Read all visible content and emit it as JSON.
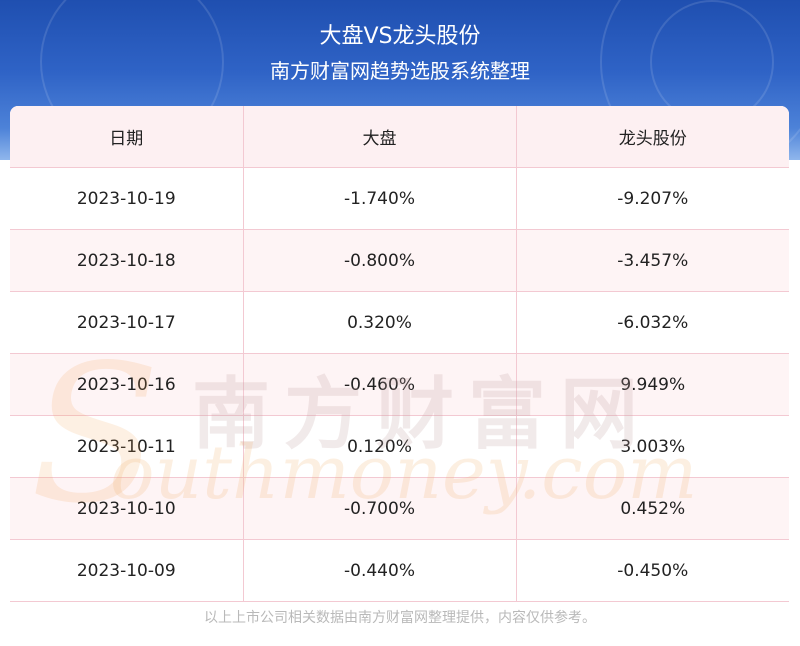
{
  "header": {
    "title": "大盘VS龙头股份",
    "subtitle": "南方财富网趋势选股系统整理"
  },
  "table": {
    "columns": [
      "日期",
      "大盘",
      "龙头股份"
    ],
    "rows": [
      [
        "2023-10-19",
        "-1.740%",
        "-9.207%"
      ],
      [
        "2023-10-18",
        "-0.800%",
        "-3.457%"
      ],
      [
        "2023-10-17",
        "0.320%",
        "-6.032%"
      ],
      [
        "2023-10-16",
        "-0.460%",
        "9.949%"
      ],
      [
        "2023-10-11",
        "0.120%",
        "3.003%"
      ],
      [
        "2023-10-10",
        "-0.700%",
        "0.452%"
      ],
      [
        "2023-10-09",
        "-0.440%",
        "-0.450%"
      ]
    ]
  },
  "watermark": {
    "text_cn": "南方财富网",
    "text_en": "outhmoney.com",
    "letter": "S"
  },
  "footer": {
    "note": "以上上市公司相关数据由南方财富网整理提供，内容仅供参考。"
  },
  "chart_data": {
    "type": "table",
    "title": "大盘VS龙头股份",
    "subtitle": "南方财富网趋势选股系统整理",
    "columns": [
      "日期",
      "大盘",
      "龙头股份"
    ],
    "categories": [
      "2023-10-19",
      "2023-10-18",
      "2023-10-17",
      "2023-10-16",
      "2023-10-11",
      "2023-10-10",
      "2023-10-09"
    ],
    "series": [
      {
        "name": "大盘",
        "values": [
          -1.74,
          -0.8,
          0.32,
          -0.46,
          0.12,
          -0.7,
          -0.44
        ]
      },
      {
        "name": "龙头股份",
        "values": [
          -9.207,
          -3.457,
          -6.032,
          9.949,
          3.003,
          0.452,
          -0.45
        ]
      }
    ]
  },
  "colors": {
    "banner": "#2f63c6",
    "header_row": "#fdf0f2",
    "grid_line": "#f3c9d2",
    "footer_text": "#b9b9b9"
  }
}
